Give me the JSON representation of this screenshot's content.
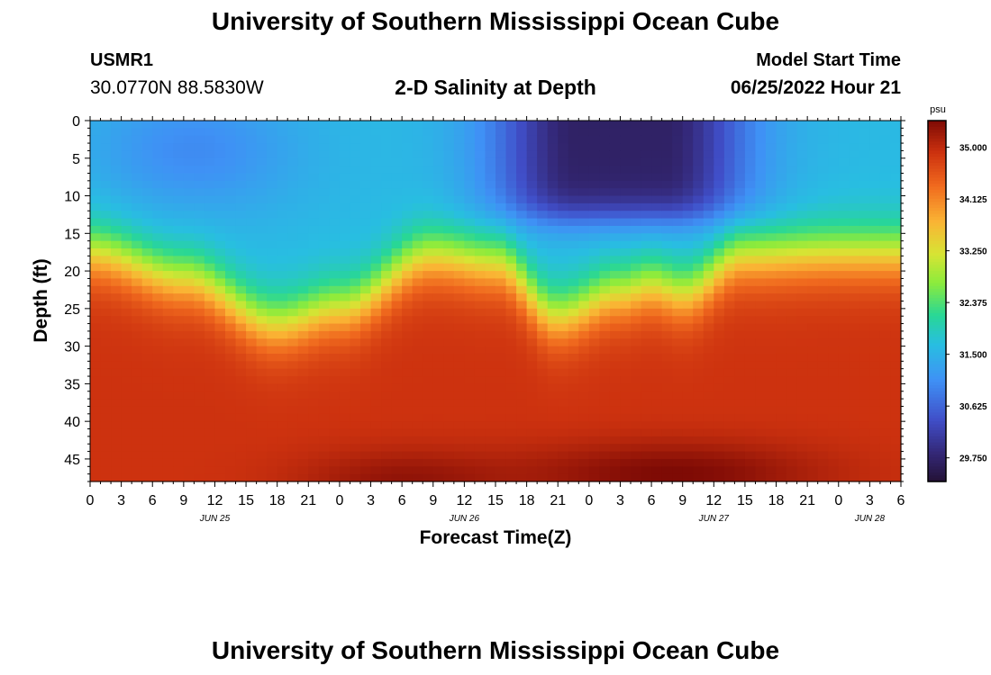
{
  "header": {
    "title": "University of Southern Mississippi Ocean Cube",
    "station_id": "USMR1",
    "station_coords": "30.0770N  88.5830W",
    "plot_title": "2-D Salinity at Depth",
    "model_start_label": "Model Start Time",
    "model_start_value": "06/25/2022 Hour 21"
  },
  "footer": {
    "title": "University of Southern Mississippi Ocean Cube"
  },
  "chart_data": {
    "type": "heatmap",
    "title": "2-D Salinity at Depth",
    "xlabel": "Forecast Time(Z)",
    "ylabel": "Depth (ft)",
    "x_range_hours": [
      0,
      78
    ],
    "x_tick_labels": [
      "0",
      "3",
      "6",
      "9",
      "12",
      "15",
      "18",
      "21",
      "0",
      "3",
      "6",
      "9",
      "12",
      "15",
      "18",
      "21",
      "0",
      "3",
      "6",
      "9",
      "12",
      "15",
      "18",
      "21",
      "0",
      "3",
      "6"
    ],
    "date_labels": [
      {
        "label": "JUN 25",
        "hour": 12
      },
      {
        "label": "JUN 26",
        "hour": 36
      },
      {
        "label": "JUN 27",
        "hour": 60
      },
      {
        "label": "JUN 28",
        "hour": 75
      }
    ],
    "y_range": [
      0,
      48
    ],
    "y_ticks": [
      0,
      5,
      10,
      15,
      20,
      25,
      30,
      35,
      40,
      45
    ],
    "colorbar": {
      "unit": "psu",
      "range": [
        29.35,
        35.45
      ],
      "ticks": [
        "35.000",
        "34.125",
        "33.250",
        "32.375",
        "31.500",
        "30.625",
        "29.750"
      ],
      "tick_values": [
        35.0,
        34.125,
        33.25,
        32.375,
        31.5,
        30.625,
        29.75
      ]
    },
    "halocline_depth_ft": [
      {
        "hour": 0,
        "depth": 15.5
      },
      {
        "hour": 9,
        "depth": 19
      },
      {
        "hour": 18,
        "depth": 25
      },
      {
        "hour": 24,
        "depth": 23
      },
      {
        "hour": 33,
        "depth": 16
      },
      {
        "hour": 39,
        "depth": 17
      },
      {
        "hour": 45,
        "depth": 24
      },
      {
        "hour": 51,
        "depth": 21
      },
      {
        "hour": 54,
        "depth": 20
      },
      {
        "hour": 57,
        "depth": 21
      },
      {
        "hour": 63,
        "depth": 16
      },
      {
        "hour": 72,
        "depth": 15.5
      },
      {
        "hour": 78,
        "depth": 15.5
      }
    ],
    "surface_salinity_psu": 31.6,
    "bottom_salinity_psu": 34.9,
    "freshwater_pulses": [
      {
        "hour_center": 10,
        "depth_center": 4,
        "min_psu": 31.0
      },
      {
        "hour_center": 51,
        "depth_center": 4,
        "min_psu": 29.7
      }
    ],
    "bottom_salty_pockets": [
      {
        "hour_center": 30,
        "depth_center": 48,
        "max_psu": 35.3
      },
      {
        "hour_center": 56,
        "depth_center": 47,
        "max_psu": 35.45
      }
    ]
  }
}
